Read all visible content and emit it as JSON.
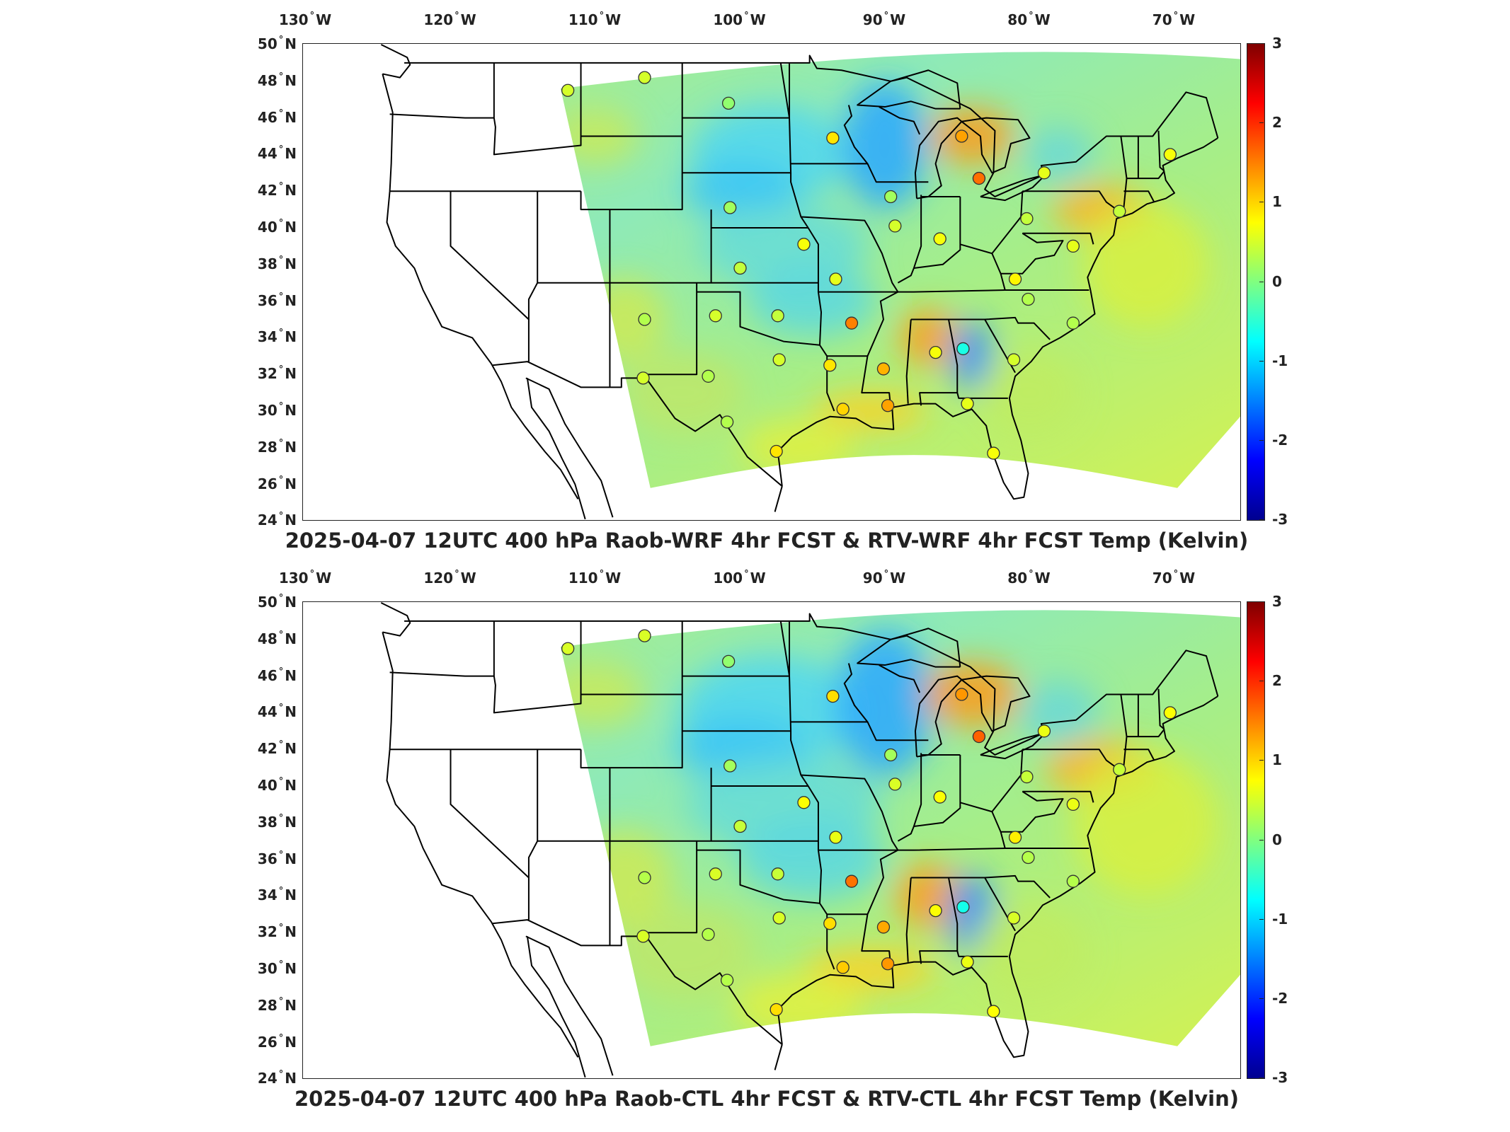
{
  "lon_labels": [
    {
      "deg": "130",
      "hemi": "W"
    },
    {
      "deg": "120",
      "hemi": "W"
    },
    {
      "deg": "110",
      "hemi": "W"
    },
    {
      "deg": "100",
      "hemi": "W"
    },
    {
      "deg": "90",
      "hemi": "W"
    },
    {
      "deg": "80",
      "hemi": "W"
    },
    {
      "deg": "70",
      "hemi": "W"
    }
  ],
  "lat_labels": [
    {
      "deg": "50",
      "hemi": "N"
    },
    {
      "deg": "48",
      "hemi": "N"
    },
    {
      "deg": "46",
      "hemi": "N"
    },
    {
      "deg": "44",
      "hemi": "N"
    },
    {
      "deg": "42",
      "hemi": "N"
    },
    {
      "deg": "40",
      "hemi": "N"
    },
    {
      "deg": "38",
      "hemi": "N"
    },
    {
      "deg": "36",
      "hemi": "N"
    },
    {
      "deg": "34",
      "hemi": "N"
    },
    {
      "deg": "32",
      "hemi": "N"
    },
    {
      "deg": "30",
      "hemi": "N"
    },
    {
      "deg": "28",
      "hemi": "N"
    },
    {
      "deg": "26",
      "hemi": "N"
    },
    {
      "deg": "24",
      "hemi": "N"
    }
  ],
  "colorbar": {
    "ticks": [
      "3",
      "2",
      "1",
      "0",
      "-1",
      "-2",
      "-3"
    ],
    "colors": [
      "#7f0000",
      "#ff0000",
      "#ff8000",
      "#ffff00",
      "#80ff80",
      "#00ffff",
      "#0080ff",
      "#0000ff",
      "#00008f"
    ]
  },
  "panels": [
    {
      "title": "2025-04-07 12UTC 400 hPa Raob-WRF 4hr FCST & RTV-WRF 4hr FCST Temp (Kelvin)"
    },
    {
      "title": "2025-04-07 12UTC 400 hPa Raob-CTL 4hr FCST & RTV-CTL 4hr FCST Temp (Kelvin)"
    }
  ],
  "stations": [
    {
      "lon": -111.9,
      "lat": 47.5,
      "value": 0.5
    },
    {
      "lon": -106.6,
      "lat": 48.2,
      "value": 0.5
    },
    {
      "lon": -100.8,
      "lat": 46.8,
      "value": 0.1
    },
    {
      "lon": -93.6,
      "lat": 44.9,
      "value": 0.9
    },
    {
      "lon": -84.7,
      "lat": 45.0,
      "value": 1.3
    },
    {
      "lon": -83.5,
      "lat": 42.7,
      "value": 1.6
    },
    {
      "lon": -79.0,
      "lat": 43.0,
      "value": 0.6
    },
    {
      "lon": -70.3,
      "lat": 44.0,
      "value": 0.7
    },
    {
      "lon": -73.8,
      "lat": 40.9,
      "value": 0.4
    },
    {
      "lon": -80.2,
      "lat": 40.5,
      "value": 0.4
    },
    {
      "lon": -77.0,
      "lat": 39.0,
      "value": 0.6
    },
    {
      "lon": -89.6,
      "lat": 41.7,
      "value": 0.2
    },
    {
      "lon": -89.3,
      "lat": 40.1,
      "value": 0.5
    },
    {
      "lon": -86.2,
      "lat": 39.4,
      "value": 0.7
    },
    {
      "lon": -100.7,
      "lat": 41.1,
      "value": 0.2
    },
    {
      "lon": -95.6,
      "lat": 39.1,
      "value": 0.7
    },
    {
      "lon": -100.0,
      "lat": 37.8,
      "value": 0.4
    },
    {
      "lon": -93.4,
      "lat": 37.2,
      "value": 0.6
    },
    {
      "lon": -81.0,
      "lat": 37.2,
      "value": 0.8
    },
    {
      "lon": -80.1,
      "lat": 36.1,
      "value": 0.3
    },
    {
      "lon": -77.0,
      "lat": 34.8,
      "value": 0.3
    },
    {
      "lon": -106.6,
      "lat": 35.0,
      "value": 0.3
    },
    {
      "lon": -101.7,
      "lat": 35.2,
      "value": 0.5
    },
    {
      "lon": -97.4,
      "lat": 35.2,
      "value": 0.4
    },
    {
      "lon": -92.3,
      "lat": 34.8,
      "value": 1.5
    },
    {
      "lon": -86.5,
      "lat": 33.2,
      "value": 0.7
    },
    {
      "lon": -84.6,
      "lat": 33.4,
      "value": -0.6
    },
    {
      "lon": -81.1,
      "lat": 32.8,
      "value": 0.5
    },
    {
      "lon": -97.3,
      "lat": 32.8,
      "value": 0.5
    },
    {
      "lon": -93.8,
      "lat": 32.5,
      "value": 0.9
    },
    {
      "lon": -90.1,
      "lat": 32.3,
      "value": 1.2
    },
    {
      "lon": -102.2,
      "lat": 31.9,
      "value": 0.3
    },
    {
      "lon": -106.7,
      "lat": 31.8,
      "value": 0.5
    },
    {
      "lon": -100.9,
      "lat": 29.4,
      "value": 0.3
    },
    {
      "lon": -92.9,
      "lat": 30.1,
      "value": 1.0
    },
    {
      "lon": -89.8,
      "lat": 30.3,
      "value": 1.3
    },
    {
      "lon": -84.3,
      "lat": 30.4,
      "value": 0.6
    },
    {
      "lon": -97.5,
      "lat": 27.8,
      "value": 0.9
    },
    {
      "lon": -82.5,
      "lat": 27.7,
      "value": 0.7
    }
  ]
}
